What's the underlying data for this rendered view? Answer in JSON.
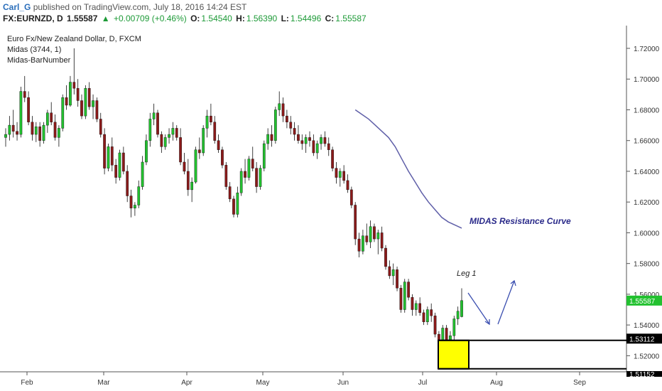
{
  "header": {
    "user": "Carl_G",
    "published": "published on TradingView.com, July 18, 2016 14:24 EST",
    "symbol": "FX:EURNZD, D",
    "last": "1.55587",
    "change": "+0.00709 (+0.46%)",
    "open_label": "O:",
    "open": "1.54540",
    "high_label": "H:",
    "high": "1.56390",
    "low_label": "L:",
    "low": "1.54496",
    "close_label": "C:",
    "close": "1.55587"
  },
  "legend": {
    "title": "Euro Fx/New Zealand Dollar, D, FXCM",
    "indicator1": "Midas (3744, 1)",
    "indicator2": "Midas-BarNumber"
  },
  "annotations": {
    "midas_label": "MIDAS Resistance Curve",
    "leg_label": "Leg 1"
  },
  "colors": {
    "up": "#22c12f",
    "down": "#8b1a1a",
    "midas": "#5f5fa8",
    "box": "#ffff00",
    "price_badge": "#22c12f",
    "level_badge": "#000000"
  },
  "chart_data": {
    "type": "candlestick",
    "title": "Euro Fx/New Zealand Dollar, D, FXCM",
    "yaxis": {
      "min": 1.51,
      "max": 1.73,
      "ticks": [
        "1.72000",
        "1.70000",
        "1.68000",
        "1.66000",
        "1.64000",
        "1.62000",
        "1.60000",
        "1.58000",
        "1.56000",
        "1.54000",
        "1.52000"
      ]
    },
    "xaxis": {
      "labels": [
        "Feb",
        "Mar",
        "Apr",
        "May",
        "Jun",
        "Jul",
        "Aug",
        "Sep"
      ]
    },
    "last_price": "1.55587",
    "level_label": "1.53112",
    "bottom_label": "1.51152",
    "box": {
      "top": 1.53,
      "bottom": 1.5115
    },
    "candles": [
      [
        1.662,
        1.668,
        1.656,
        1.664
      ],
      [
        1.664,
        1.676,
        1.66,
        1.67
      ],
      [
        1.67,
        1.68,
        1.662,
        1.666
      ],
      [
        1.666,
        1.672,
        1.66,
        1.664
      ],
      [
        1.664,
        1.695,
        1.662,
        1.692
      ],
      [
        1.692,
        1.702,
        1.685,
        1.688
      ],
      [
        1.688,
        1.692,
        1.67,
        1.672
      ],
      [
        1.672,
        1.676,
        1.66,
        1.664
      ],
      [
        1.664,
        1.672,
        1.659,
        1.669
      ],
      [
        1.669,
        1.672,
        1.656,
        1.66
      ],
      [
        1.66,
        1.672,
        1.658,
        1.67
      ],
      [
        1.67,
        1.68,
        1.665,
        1.678
      ],
      [
        1.678,
        1.685,
        1.67,
        1.672
      ],
      [
        1.672,
        1.677,
        1.66,
        1.662
      ],
      [
        1.662,
        1.67,
        1.656,
        1.668
      ],
      [
        1.668,
        1.69,
        1.666,
        1.688
      ],
      [
        1.688,
        1.696,
        1.68,
        1.683
      ],
      [
        1.683,
        1.702,
        1.682,
        1.698
      ],
      [
        1.698,
        1.72,
        1.69,
        1.694
      ],
      [
        1.694,
        1.7,
        1.682,
        1.686
      ],
      [
        1.686,
        1.69,
        1.674,
        1.676
      ],
      [
        1.676,
        1.696,
        1.674,
        1.694
      ],
      [
        1.694,
        1.698,
        1.68,
        1.682
      ],
      [
        1.682,
        1.69,
        1.674,
        1.686
      ],
      [
        1.686,
        1.688,
        1.672,
        1.674
      ],
      [
        1.674,
        1.678,
        1.662,
        1.664
      ],
      [
        1.664,
        1.668,
        1.638,
        1.642
      ],
      [
        1.642,
        1.658,
        1.64,
        1.656
      ],
      [
        1.656,
        1.662,
        1.64,
        1.644
      ],
      [
        1.644,
        1.648,
        1.632,
        1.636
      ],
      [
        1.636,
        1.654,
        1.634,
        1.652
      ],
      [
        1.652,
        1.656,
        1.638,
        1.64
      ],
      [
        1.64,
        1.644,
        1.62,
        1.624
      ],
      [
        1.624,
        1.628,
        1.61,
        1.616
      ],
      [
        1.616,
        1.62,
        1.611,
        1.618
      ],
      [
        1.618,
        1.634,
        1.616,
        1.63
      ],
      [
        1.63,
        1.65,
        1.628,
        1.646
      ],
      [
        1.646,
        1.664,
        1.644,
        1.66
      ],
      [
        1.66,
        1.678,
        1.656,
        1.674
      ],
      [
        1.674,
        1.684,
        1.67,
        1.678
      ],
      [
        1.678,
        1.68,
        1.662,
        1.664
      ],
      [
        1.664,
        1.666,
        1.652,
        1.656
      ],
      [
        1.656,
        1.664,
        1.654,
        1.662
      ],
      [
        1.662,
        1.668,
        1.658,
        1.664
      ],
      [
        1.664,
        1.672,
        1.66,
        1.668
      ],
      [
        1.668,
        1.67,
        1.66,
        1.662
      ],
      [
        1.662,
        1.668,
        1.644,
        1.646
      ],
      [
        1.646,
        1.652,
        1.638,
        1.64
      ],
      [
        1.64,
        1.648,
        1.624,
        1.628
      ],
      [
        1.628,
        1.636,
        1.62,
        1.633
      ],
      [
        1.633,
        1.656,
        1.632,
        1.654
      ],
      [
        1.654,
        1.662,
        1.648,
        1.652
      ],
      [
        1.652,
        1.67,
        1.65,
        1.668
      ],
      [
        1.668,
        1.68,
        1.662,
        1.676
      ],
      [
        1.676,
        1.684,
        1.67,
        1.672
      ],
      [
        1.672,
        1.676,
        1.658,
        1.66
      ],
      [
        1.66,
        1.664,
        1.652,
        1.654
      ],
      [
        1.654,
        1.656,
        1.642,
        1.644
      ],
      [
        1.644,
        1.646,
        1.628,
        1.63
      ],
      [
        1.63,
        1.633,
        1.62,
        1.622
      ],
      [
        1.622,
        1.624,
        1.61,
        1.612
      ],
      [
        1.612,
        1.63,
        1.61,
        1.626
      ],
      [
        1.626,
        1.642,
        1.624,
        1.64
      ],
      [
        1.64,
        1.648,
        1.632,
        1.636
      ],
      [
        1.636,
        1.65,
        1.634,
        1.648
      ],
      [
        1.648,
        1.656,
        1.64,
        1.642
      ],
      [
        1.642,
        1.646,
        1.626,
        1.63
      ],
      [
        1.63,
        1.644,
        1.628,
        1.642
      ],
      [
        1.642,
        1.66,
        1.64,
        1.658
      ],
      [
        1.658,
        1.668,
        1.654,
        1.664
      ],
      [
        1.664,
        1.67,
        1.656,
        1.66
      ],
      [
        1.66,
        1.682,
        1.658,
        1.68
      ],
      [
        1.68,
        1.692,
        1.676,
        1.684
      ],
      [
        1.684,
        1.688,
        1.672,
        1.676
      ],
      [
        1.676,
        1.68,
        1.668,
        1.672
      ],
      [
        1.672,
        1.676,
        1.664,
        1.668
      ],
      [
        1.668,
        1.672,
        1.66,
        1.664
      ],
      [
        1.664,
        1.67,
        1.658,
        1.66
      ],
      [
        1.66,
        1.664,
        1.654,
        1.658
      ],
      [
        1.658,
        1.664,
        1.652,
        1.662
      ],
      [
        1.662,
        1.666,
        1.656,
        1.66
      ],
      [
        1.66,
        1.664,
        1.65,
        1.652
      ],
      [
        1.652,
        1.66,
        1.648,
        1.658
      ],
      [
        1.658,
        1.664,
        1.654,
        1.662
      ],
      [
        1.662,
        1.666,
        1.656,
        1.658
      ],
      [
        1.658,
        1.662,
        1.65,
        1.654
      ],
      [
        1.654,
        1.656,
        1.64,
        1.642
      ],
      [
        1.642,
        1.646,
        1.632,
        1.636
      ],
      [
        1.636,
        1.642,
        1.63,
        1.64
      ],
      [
        1.64,
        1.644,
        1.632,
        1.634
      ],
      [
        1.634,
        1.638,
        1.626,
        1.628
      ],
      [
        1.628,
        1.63,
        1.616,
        1.618
      ],
      [
        1.618,
        1.62,
        1.592,
        1.596
      ],
      [
        1.596,
        1.6,
        1.584,
        1.588
      ],
      [
        1.588,
        1.602,
        1.586,
        1.598
      ],
      [
        1.598,
        1.606,
        1.592,
        1.594
      ],
      [
        1.594,
        1.608,
        1.59,
        1.604
      ],
      [
        1.604,
        1.606,
        1.594,
        1.596
      ],
      [
        1.596,
        1.602,
        1.586,
        1.6
      ],
      [
        1.6,
        1.604,
        1.588,
        1.59
      ],
      [
        1.59,
        1.592,
        1.576,
        1.578
      ],
      [
        1.578,
        1.582,
        1.57,
        1.572
      ],
      [
        1.572,
        1.58,
        1.566,
        1.576
      ],
      [
        1.576,
        1.578,
        1.562,
        1.564
      ],
      [
        1.564,
        1.566,
        1.548,
        1.55
      ],
      [
        1.55,
        1.57,
        1.548,
        1.568
      ],
      [
        1.568,
        1.57,
        1.556,
        1.558
      ],
      [
        1.558,
        1.56,
        1.546,
        1.55
      ],
      [
        1.55,
        1.556,
        1.546,
        1.554
      ],
      [
        1.554,
        1.558,
        1.546,
        1.548
      ],
      [
        1.548,
        1.55,
        1.54,
        1.542
      ],
      [
        1.542,
        1.552,
        1.54,
        1.55
      ],
      [
        1.55,
        1.554,
        1.542,
        1.546
      ],
      [
        1.546,
        1.548,
        1.532,
        1.534
      ],
      [
        1.534,
        1.536,
        1.522,
        1.526
      ],
      [
        1.526,
        1.54,
        1.524,
        1.538
      ],
      [
        1.538,
        1.54,
        1.524,
        1.526
      ],
      [
        1.526,
        1.536,
        1.525,
        1.533
      ],
      [
        1.533,
        1.546,
        1.53,
        1.544
      ],
      [
        1.544,
        1.552,
        1.54,
        1.549
      ],
      [
        1.5454,
        1.5639,
        1.545,
        1.5559
      ]
    ]
  }
}
